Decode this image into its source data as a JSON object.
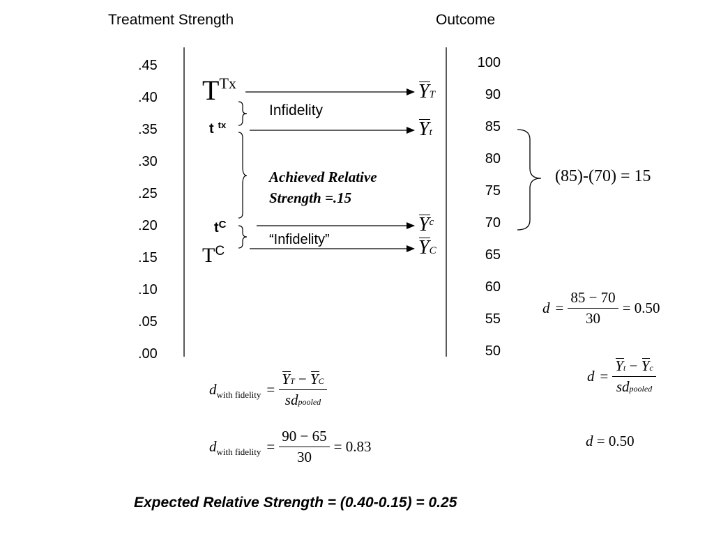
{
  "headers": {
    "treatment_strength": "Treatment Strength",
    "outcome": "Outcome"
  },
  "left_axis": {
    "ticks": [
      ".45",
      ".40",
      ".35",
      ".30",
      ".25",
      ".20",
      ".15",
      ".10",
      ".05",
      ".00"
    ]
  },
  "right_axis": {
    "ticks": [
      "100",
      "90",
      "85",
      "80",
      "75",
      "70",
      "65",
      "60",
      "55",
      "50"
    ]
  },
  "labels": {
    "T_main": "T",
    "T_main_sup": "Tx",
    "t_small": "t",
    "t_small_sup": "tx",
    "tc": "t",
    "tc_sup": "C",
    "TC": "T",
    "TC_sup": "C",
    "infidelity": "Infidelity",
    "infidelity_quoted": "“Infidelity”",
    "achieved_line1": "Achieved Relative",
    "achieved_line2": "Strength =.15"
  },
  "outcomes": {
    "Y": "Y",
    "YT_sub": "T",
    "Yt_sub": "t",
    "Yc_sub": "c",
    "YC_sub": "C"
  },
  "bracket_result": "(85)-(70) = 15",
  "equations": {
    "d": "d",
    "equals": "=",
    "minus": "−",
    "with_fidelity": "with fidelity",
    "sd": "sd",
    "pooled": "pooled",
    "eq_right_num": "85 − 70",
    "eq_right_den": "30",
    "eq_right_result": "= 0.50",
    "eq_wf_num": "90 − 65",
    "eq_wf_den": "30",
    "eq_wf_result": "= 0.83",
    "d_050": "d = 0.50"
  },
  "footer": "Expected Relative Strength = (0.40-0.15) = 0.25"
}
